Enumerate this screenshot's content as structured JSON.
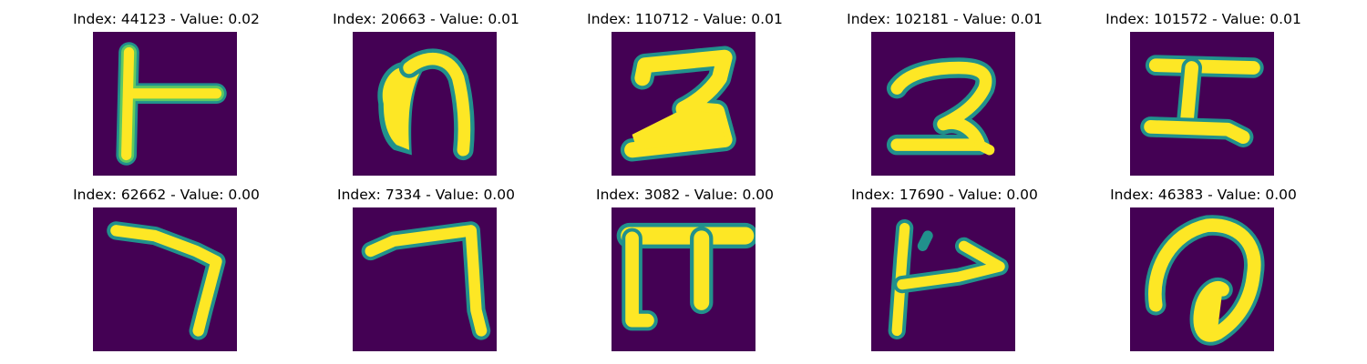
{
  "figure": {
    "colormap": "viridis",
    "tiles": [
      {
        "index": 44123,
        "title": "Index: 44123 - Value: 0.02",
        "glyph": "bolt-t-shape"
      },
      {
        "index": 20663,
        "title": "Index: 20663 - Value: 0.01",
        "glyph": "filled-arch"
      },
      {
        "index": 110712,
        "title": "Index: 110712 - Value: 0.01",
        "glyph": "z-stroke"
      },
      {
        "index": 102181,
        "title": "Index: 102181 - Value: 0.01",
        "glyph": "curly-z"
      },
      {
        "index": 101572,
        "title": "Index: 101572 - Value: 0.01",
        "glyph": "i-beam"
      },
      {
        "index": 62662,
        "title": "Index: 62662 - Value: 0.00",
        "glyph": "hook-right"
      },
      {
        "index": 7334,
        "title": "Index: 7334 - Value: 0.00",
        "glyph": "gamma-hook"
      },
      {
        "index": 3082,
        "title": "Index: 3082 - Value: 0.00",
        "glyph": "pi-shape"
      },
      {
        "index": 17690,
        "title": "Index: 17690 - Value: 0.00",
        "glyph": "flag-arrow"
      },
      {
        "index": 46383,
        "title": "Index: 46383 - Value: 0.00",
        "glyph": "spiral-loop"
      }
    ]
  }
}
